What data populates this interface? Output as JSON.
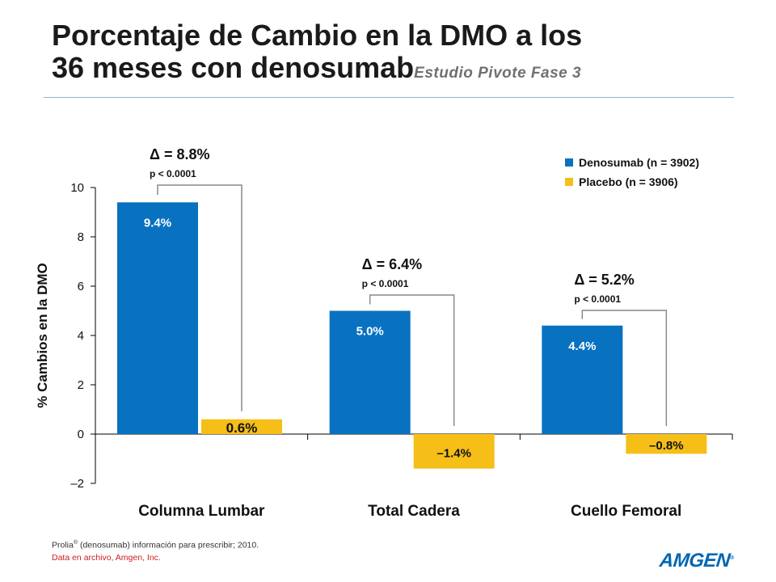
{
  "title": {
    "line1": "Porcentaje de Cambio en la DMO a los",
    "line2": "36 meses con denosumab",
    "subtitle": "Estudio Pivote Fase 3"
  },
  "chart_data": {
    "type": "bar",
    "ylabel": "% Cambios en la DMO",
    "ylim": [
      -2,
      10
    ],
    "yticks": [
      10,
      8,
      6,
      4,
      2,
      0,
      -2
    ],
    "ytick_labels": [
      "10",
      "8",
      "6",
      "4",
      "2",
      "0",
      "–2"
    ],
    "categories": [
      "Columna Lumbar",
      "Total Cadera",
      "Cuello Femoral"
    ],
    "series": [
      {
        "name": "Denosumab (n = 3902)",
        "color": "#0872c1",
        "values": [
          9.4,
          5.0,
          4.4
        ],
        "labels": [
          "9.4%",
          "5.0%",
          "4.4%"
        ]
      },
      {
        "name": "Placebo (n = 3906)",
        "color": "#f5bf18",
        "values": [
          0.6,
          -1.4,
          -0.8
        ],
        "labels": [
          "0.6%",
          "–1.4%",
          "–0.8%"
        ]
      }
    ],
    "annotations": [
      {
        "delta": "Δ = 8.8%",
        "p": "p < 0.0001"
      },
      {
        "delta": "Δ = 6.4%",
        "p": "p < 0.0001"
      },
      {
        "delta": "Δ = 5.2%",
        "p": "p < 0.0001"
      }
    ],
    "legend_position": "top-right"
  },
  "footer": {
    "reference_name": "Prolia",
    "reference_mark": "®",
    "reference_rest": " (denosumab) información para prescribir; 2010.",
    "note": "Data en archivo, Amgen, Inc."
  },
  "logo": {
    "text": "AMGEN",
    "mark": "®"
  },
  "colors": {
    "denosumab": "#0872c1",
    "placebo": "#f5bf18",
    "bracket": "#888888"
  }
}
